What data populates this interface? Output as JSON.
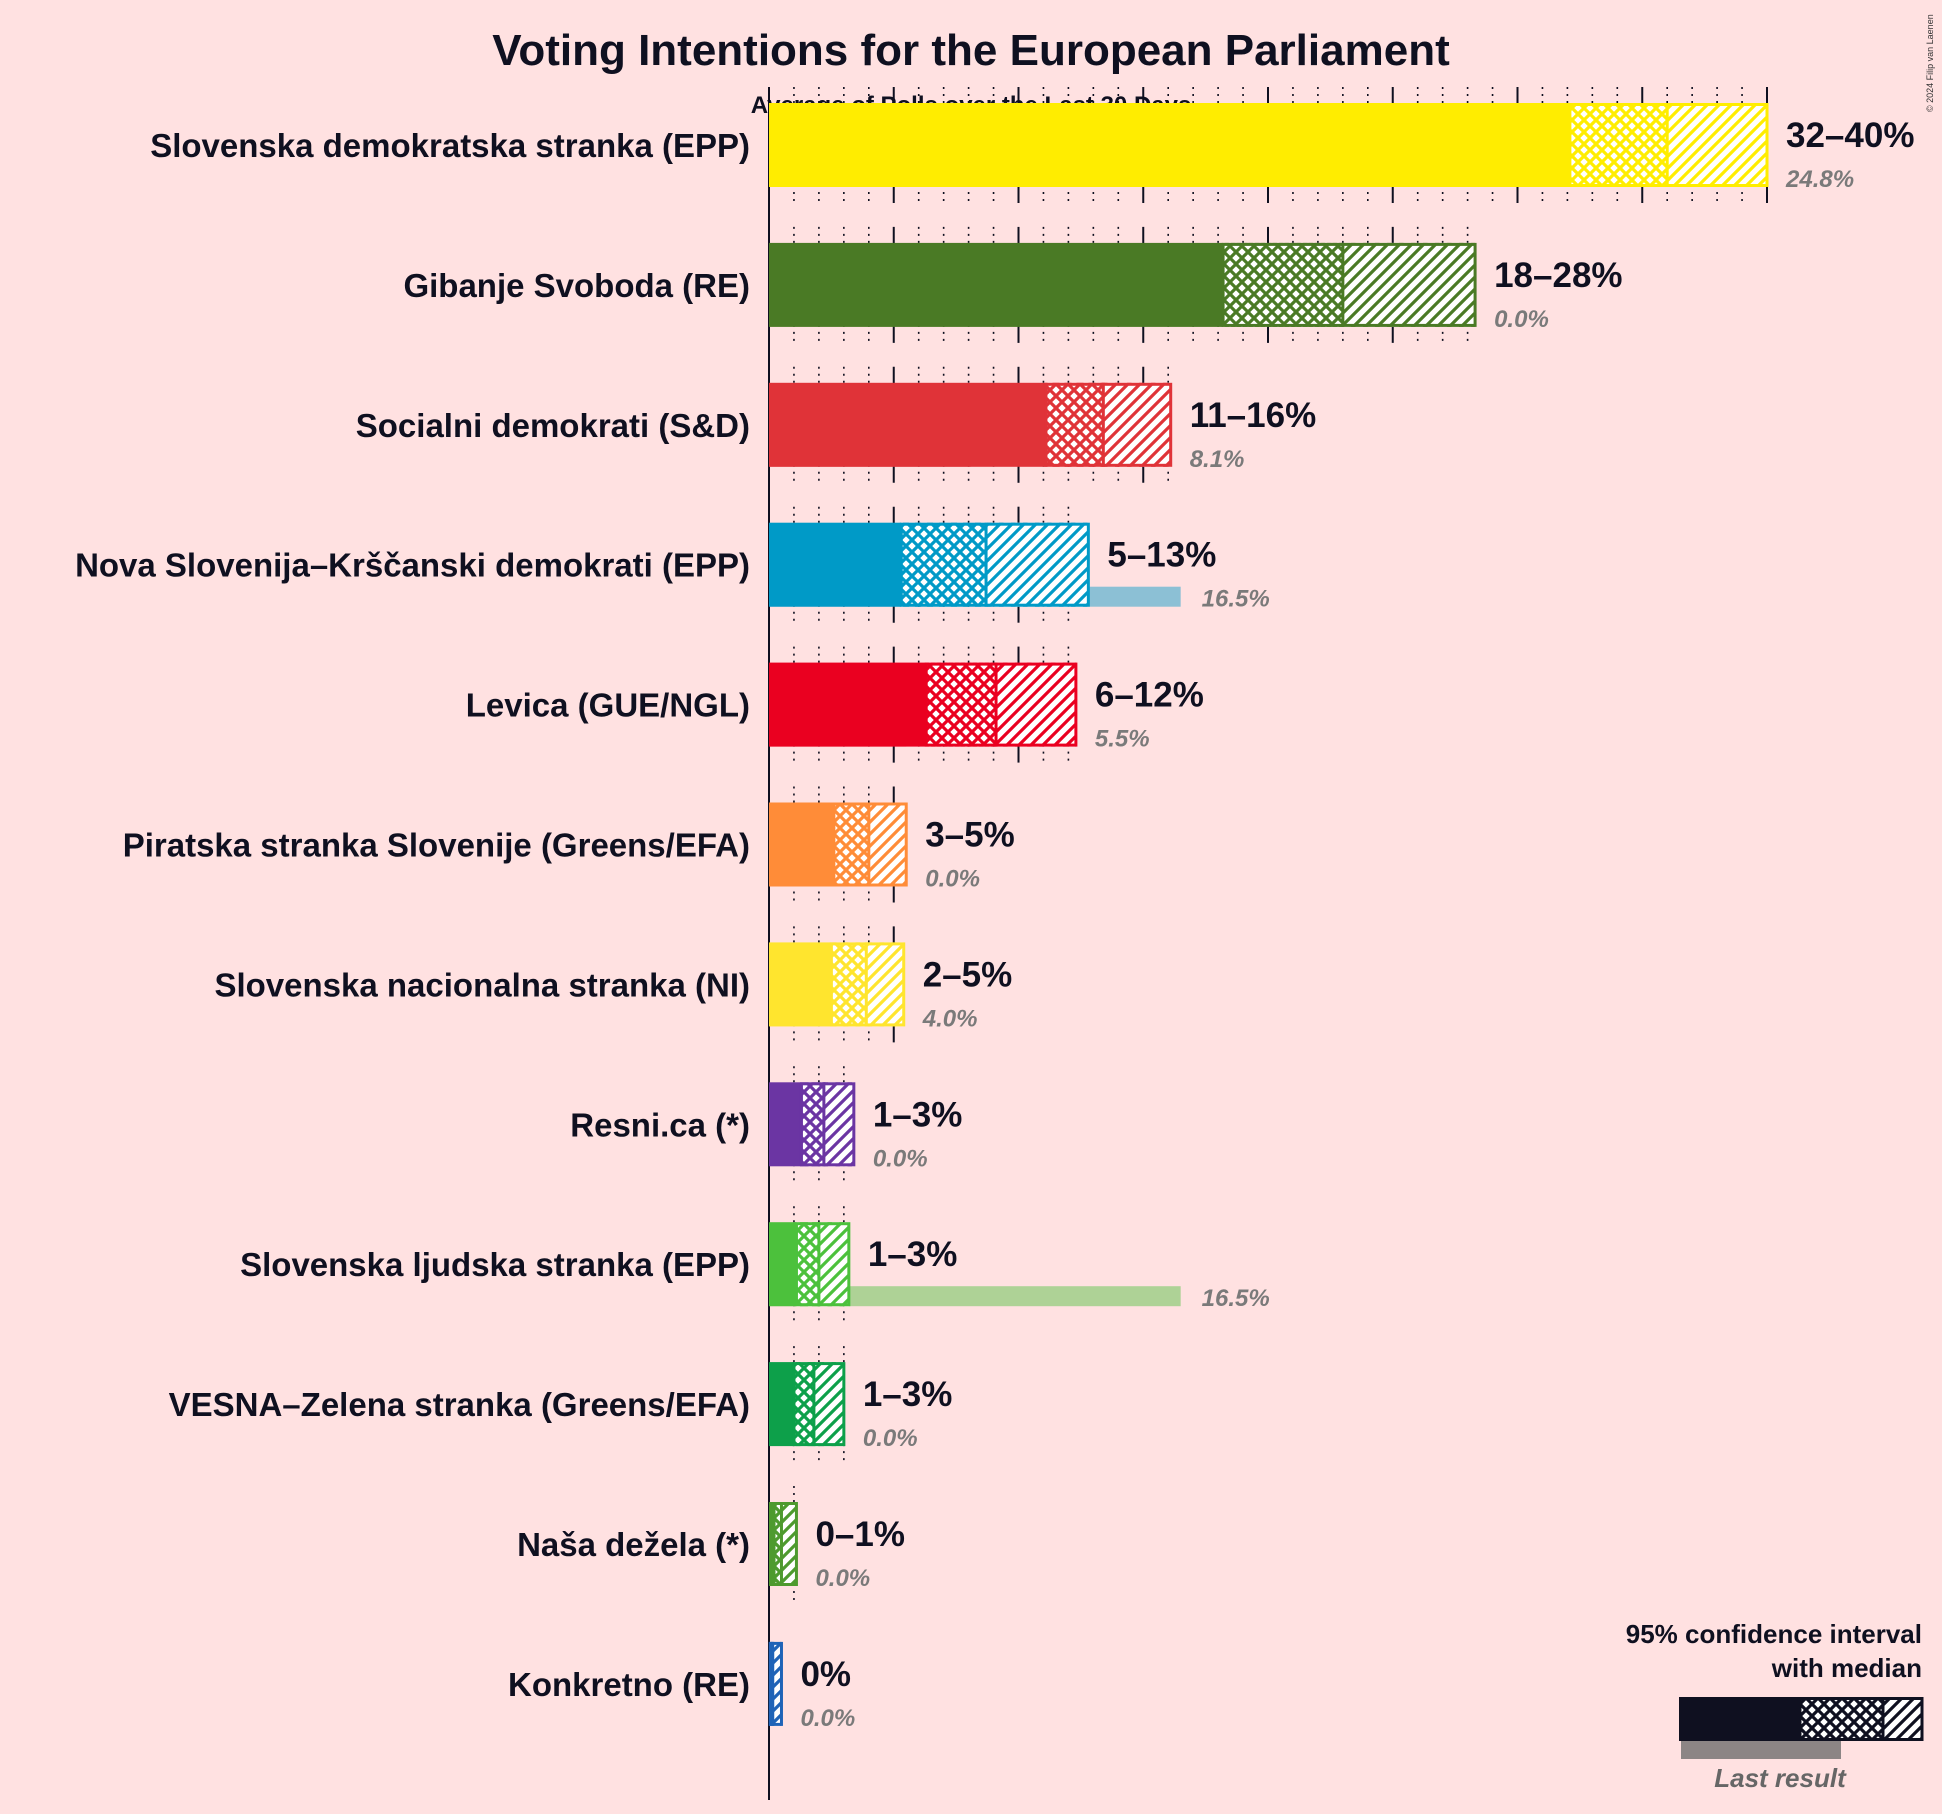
{
  "title": "Voting Intentions for the European Parliament",
  "subtitle": "Average of Polls over the Last 30 Days",
  "copyright": "© 2024 Filip van Laenen",
  "legend": {
    "line1": "95% confidence interval",
    "line2": "with median",
    "last_result": "Last result",
    "color": "#0F1020"
  },
  "chart_data": {
    "type": "bar",
    "orientation": "horizontal",
    "title": "Voting Intentions for the European Parliament",
    "subtitle": "Average of Polls over the Last 30 Days",
    "x_unit": "%",
    "xlim": [
      0,
      40
    ],
    "gridlines": "solid every 5%, dotted every 1%",
    "parties": [
      {
        "name": "Slovenska demokratska stranka (EPP)",
        "color": "#FFED00",
        "low": 32.1,
        "median": 36.0,
        "high": 40.0,
        "range_label": "32–40%",
        "last": 24.8,
        "last_label": "24.8%"
      },
      {
        "name": "Gibanje Svoboda (RE)",
        "color": "#4A7A25",
        "low": 18.2,
        "median": 23.0,
        "high": 28.3,
        "range_label": "18–28%",
        "last": 0.0,
        "last_label": "0.0%"
      },
      {
        "name": "Socialni demokrati (S&D)",
        "color": "#E03338",
        "low": 11.1,
        "median": 13.4,
        "high": 16.1,
        "range_label": "11–16%",
        "last": 8.1,
        "last_label": "8.1%"
      },
      {
        "name": "Nova Slovenija–Krščanski demokrati (EPP)",
        "color": "#009AC7",
        "low": 5.3,
        "median": 8.7,
        "high": 12.8,
        "range_label": "5–13%",
        "last": 16.5,
        "last_label": "16.5%"
      },
      {
        "name": "Levica (GUE/NGL)",
        "color": "#EA0020",
        "low": 6.3,
        "median": 9.1,
        "high": 12.3,
        "range_label": "6–12%",
        "last": 5.5,
        "last_label": "5.5%"
      },
      {
        "name": "Piratska stranka Slovenije (Greens/EFA)",
        "color": "#FF8C38",
        "low": 2.6,
        "median": 4.0,
        "high": 5.5,
        "range_label": "3–5%",
        "last": 0.0,
        "last_label": "0.0%"
      },
      {
        "name": "Slovenska nacionalna stranka (NI)",
        "color": "#FFE52E",
        "low": 2.5,
        "median": 3.9,
        "high": 5.4,
        "range_label": "2–5%",
        "last": 4.0,
        "last_label": "4.0%"
      },
      {
        "name": "Resni.ca (*)",
        "color": "#6B35A3",
        "low": 1.3,
        "median": 2.2,
        "high": 3.4,
        "range_label": "1–3%",
        "last": 0.0,
        "last_label": "0.0%"
      },
      {
        "name": "Slovenska ljudska stranka (EPP)",
        "color": "#4CC13C",
        "low": 1.1,
        "median": 2.0,
        "high": 3.2,
        "range_label": "1–3%",
        "last": 16.5,
        "last_label": "16.5%"
      },
      {
        "name": "VESNA–Zelena stranka (Greens/EFA)",
        "color": "#0DA04A",
        "low": 1.0,
        "median": 1.8,
        "high": 3.0,
        "range_label": "1–3%",
        "last": 0.0,
        "last_label": "0.0%"
      },
      {
        "name": "Naša dežela (*)",
        "color": "#4E9A2E",
        "low": 0.2,
        "median": 0.5,
        "high": 1.1,
        "range_label": "0–1%",
        "last": 0.0,
        "last_label": "0.0%"
      },
      {
        "name": "Konkretno (RE)",
        "color": "#1F63B7",
        "low": 0.05,
        "median": 0.15,
        "high": 0.5,
        "range_label": "0%",
        "last": 0.0,
        "last_label": "0.0%"
      }
    ]
  }
}
